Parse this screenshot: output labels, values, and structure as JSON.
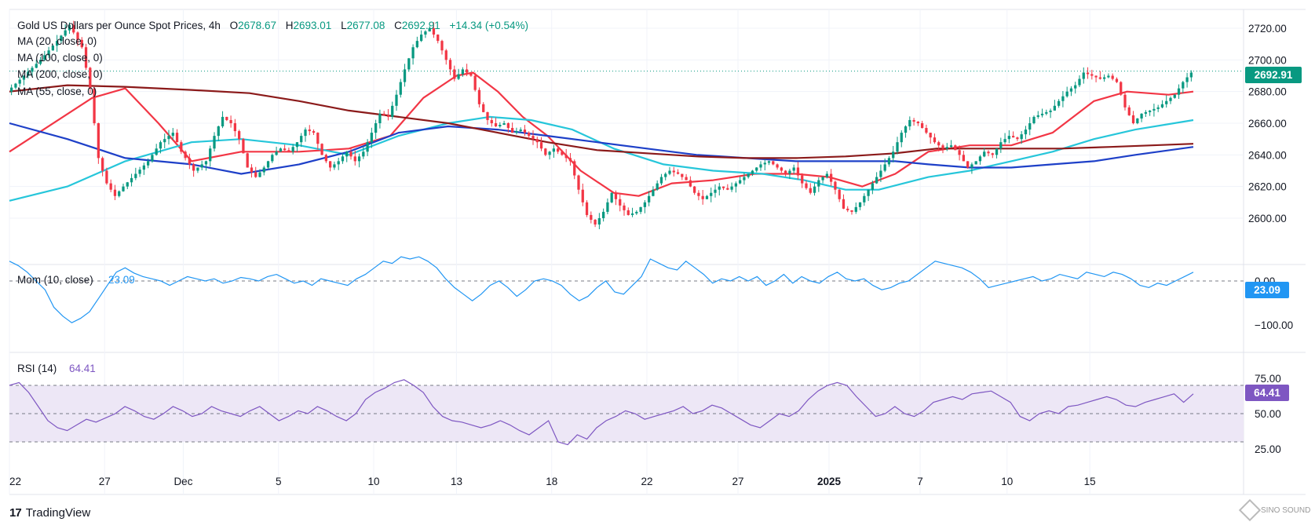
{
  "header": {
    "symbol": "Gold US Dollars per Ounce Spot Prices, 4h",
    "o_label": "O",
    "o": "2678.67",
    "h_label": "H",
    "h": "2693.01",
    "l_label": "L",
    "l": "2677.08",
    "c_label": "C",
    "c": "2692.91",
    "change": "+14.34 (+0.54%)"
  },
  "indicators": {
    "ma20": "MA (20, close, 0)",
    "ma100": "MA (100, close, 0)",
    "ma200": "MA (200, close, 0)",
    "ma55": "MA (55, close, 0)",
    "mom_label": "Mom (10, close)",
    "mom_value": "23.09",
    "rsi_label": "RSI (14)",
    "rsi_value": "64.41"
  },
  "badges": {
    "price": "2692.91",
    "mom": "23.09",
    "rsi": "64.41"
  },
  "branding": {
    "logo": "TradingView",
    "watermark": "SINO SOUND"
  },
  "colors": {
    "up": "#089981",
    "down": "#f23645",
    "ma20": "#f23645",
    "ma55": "#26c6da",
    "ma100": "#1e40c8",
    "ma200": "#8b1a1a",
    "mom": "#2196f3",
    "rsi": "#7e57c2",
    "rsi_band": "#ede7f6"
  },
  "chart_data": [
    {
      "type": "candlestick",
      "title": "Gold US Dollars per Ounce Spot Prices, 4h",
      "timeframe": "4h",
      "ylim": [
        2585,
        2730
      ],
      "y_ticks": [
        "2720.00",
        "2700.00",
        "2680.00",
        "2660.00",
        "2640.00",
        "2620.00",
        "2600.00"
      ],
      "x_ticks": [
        "22",
        "27",
        "Dec",
        "5",
        "10",
        "13",
        "18",
        "22",
        "27",
        "2025",
        "7",
        "10",
        "15"
      ],
      "last_price": 2692.91,
      "path_points": [
        [
          0,
          2680
        ],
        [
          4,
          2690
        ],
        [
          8,
          2700
        ],
        [
          12,
          2712
        ],
        [
          15,
          2722
        ],
        [
          18,
          2708
        ],
        [
          20,
          2682
        ],
        [
          22,
          2638
        ],
        [
          24,
          2622
        ],
        [
          26,
          2614
        ],
        [
          28,
          2620
        ],
        [
          31,
          2628
        ],
        [
          34,
          2636
        ],
        [
          37,
          2648
        ],
        [
          40,
          2654
        ],
        [
          42,
          2642
        ],
        [
          45,
          2630
        ],
        [
          48,
          2636
        ],
        [
          50,
          2652
        ],
        [
          52,
          2664
        ],
        [
          54,
          2660
        ],
        [
          56,
          2650
        ],
        [
          58,
          2632
        ],
        [
          60,
          2626
        ],
        [
          62,
          2632
        ],
        [
          64,
          2640
        ],
        [
          66,
          2644
        ],
        [
          68,
          2642
        ],
        [
          70,
          2648
        ],
        [
          72,
          2656
        ],
        [
          74,
          2654
        ],
        [
          76,
          2640
        ],
        [
          78,
          2632
        ],
        [
          80,
          2636
        ],
        [
          82,
          2642
        ],
        [
          84,
          2636
        ],
        [
          86,
          2642
        ],
        [
          88,
          2654
        ],
        [
          90,
          2666
        ],
        [
          92,
          2664
        ],
        [
          94,
          2678
        ],
        [
          96,
          2694
        ],
        [
          98,
          2708
        ],
        [
          100,
          2716
        ],
        [
          102,
          2720
        ],
        [
          104,
          2712
        ],
        [
          106,
          2700
        ],
        [
          108,
          2688
        ],
        [
          110,
          2694
        ],
        [
          112,
          2690
        ],
        [
          114,
          2672
        ],
        [
          116,
          2662
        ],
        [
          118,
          2658
        ],
        [
          120,
          2660
        ],
        [
          122,
          2654
        ],
        [
          124,
          2656
        ],
        [
          126,
          2652
        ],
        [
          128,
          2648
        ],
        [
          130,
          2640
        ],
        [
          132,
          2644
        ],
        [
          134,
          2640
        ],
        [
          136,
          2636
        ],
        [
          138,
          2618
        ],
        [
          140,
          2602
        ],
        [
          142,
          2596
        ],
        [
          144,
          2604
        ],
        [
          146,
          2616
        ],
        [
          148,
          2608
        ],
        [
          150,
          2602
        ],
        [
          152,
          2604
        ],
        [
          154,
          2610
        ],
        [
          156,
          2618
        ],
        [
          158,
          2626
        ],
        [
          160,
          2630
        ],
        [
          162,
          2628
        ],
        [
          164,
          2624
        ],
        [
          166,
          2616
        ],
        [
          168,
          2612
        ],
        [
          170,
          2616
        ],
        [
          172,
          2620
        ],
        [
          174,
          2618
        ],
        [
          176,
          2622
        ],
        [
          178,
          2626
        ],
        [
          180,
          2630
        ],
        [
          182,
          2634
        ],
        [
          184,
          2636
        ],
        [
          186,
          2632
        ],
        [
          188,
          2628
        ],
        [
          190,
          2632
        ],
        [
          192,
          2622
        ],
        [
          194,
          2616
        ],
        [
          196,
          2624
        ],
        [
          198,
          2628
        ],
        [
          200,
          2618
        ],
        [
          202,
          2606
        ],
        [
          204,
          2604
        ],
        [
          206,
          2610
        ],
        [
          208,
          2618
        ],
        [
          210,
          2626
        ],
        [
          212,
          2634
        ],
        [
          214,
          2642
        ],
        [
          216,
          2654
        ],
        [
          218,
          2662
        ],
        [
          220,
          2660
        ],
        [
          222,
          2654
        ],
        [
          224,
          2648
        ],
        [
          226,
          2644
        ],
        [
          228,
          2646
        ],
        [
          230,
          2640
        ],
        [
          232,
          2632
        ],
        [
          234,
          2636
        ],
        [
          236,
          2642
        ],
        [
          238,
          2640
        ],
        [
          240,
          2648
        ],
        [
          242,
          2652
        ],
        [
          244,
          2650
        ],
        [
          246,
          2656
        ],
        [
          248,
          2664
        ],
        [
          250,
          2666
        ],
        [
          252,
          2668
        ],
        [
          254,
          2674
        ],
        [
          256,
          2680
        ],
        [
          258,
          2684
        ],
        [
          260,
          2692
        ],
        [
          262,
          2690
        ],
        [
          264,
          2688
        ],
        [
          266,
          2690
        ],
        [
          268,
          2686
        ],
        [
          270,
          2670
        ],
        [
          272,
          2660
        ],
        [
          274,
          2666
        ],
        [
          276,
          2668
        ],
        [
          278,
          2670
        ],
        [
          280,
          2674
        ],
        [
          282,
          2678
        ],
        [
          284,
          2686
        ],
        [
          286,
          2692
        ]
      ],
      "series": [
        {
          "name": "MA (20, close, 0)",
          "points": [
            [
              0,
              2642
            ],
            [
              20,
              2676
            ],
            [
              28,
              2682
            ],
            [
              36,
              2660
            ],
            [
              44,
              2636
            ],
            [
              56,
              2642
            ],
            [
              70,
              2642
            ],
            [
              82,
              2644
            ],
            [
              92,
              2652
            ],
            [
              100,
              2676
            ],
            [
              108,
              2690
            ],
            [
              112,
              2692
            ],
            [
              118,
              2680
            ],
            [
              124,
              2664
            ],
            [
              130,
              2652
            ],
            [
              138,
              2630
            ],
            [
              146,
              2616
            ],
            [
              152,
              2614
            ],
            [
              160,
              2622
            ],
            [
              170,
              2624
            ],
            [
              180,
              2628
            ],
            [
              190,
              2628
            ],
            [
              198,
              2626
            ],
            [
              206,
              2620
            ],
            [
              214,
              2628
            ],
            [
              222,
              2642
            ],
            [
              232,
              2646
            ],
            [
              242,
              2646
            ],
            [
              252,
              2654
            ],
            [
              262,
              2674
            ],
            [
              270,
              2680
            ],
            [
              280,
              2678
            ],
            [
              286,
              2680
            ]
          ]
        },
        {
          "name": "MA (55, close, 0)",
          "points": [
            [
              0,
              2611
            ],
            [
              14,
              2620
            ],
            [
              28,
              2636
            ],
            [
              44,
              2648
            ],
            [
              56,
              2650
            ],
            [
              70,
              2646
            ],
            [
              82,
              2640
            ],
            [
              94,
              2652
            ],
            [
              106,
              2660
            ],
            [
              116,
              2664
            ],
            [
              126,
              2662
            ],
            [
              136,
              2656
            ],
            [
              146,
              2644
            ],
            [
              158,
              2634
            ],
            [
              170,
              2630
            ],
            [
              182,
              2628
            ],
            [
              192,
              2624
            ],
            [
              202,
              2618
            ],
            [
              210,
              2618
            ],
            [
              222,
              2626
            ],
            [
              232,
              2630
            ],
            [
              242,
              2636
            ],
            [
              252,
              2642
            ],
            [
              262,
              2650
            ],
            [
              272,
              2656
            ],
            [
              286,
              2662
            ]
          ]
        },
        {
          "name": "MA (100, close, 0)",
          "points": [
            [
              0,
              2660
            ],
            [
              14,
              2650
            ],
            [
              28,
              2638
            ],
            [
              44,
              2634
            ],
            [
              56,
              2628
            ],
            [
              70,
              2634
            ],
            [
              82,
              2642
            ],
            [
              94,
              2654
            ],
            [
              106,
              2658
            ],
            [
              118,
              2656
            ],
            [
              130,
              2652
            ],
            [
              142,
              2648
            ],
            [
              154,
              2644
            ],
            [
              166,
              2640
            ],
            [
              178,
              2638
            ],
            [
              190,
              2636
            ],
            [
              202,
              2636
            ],
            [
              214,
              2636
            ],
            [
              222,
              2634
            ],
            [
              232,
              2632
            ],
            [
              242,
              2632
            ],
            [
              252,
              2634
            ],
            [
              262,
              2636
            ],
            [
              272,
              2640
            ],
            [
              286,
              2645
            ]
          ]
        },
        {
          "name": "MA (200, close, 0)",
          "points": [
            [
              0,
              2680
            ],
            [
              14,
              2684
            ],
            [
              28,
              2683
            ],
            [
              44,
              2681
            ],
            [
              58,
              2679
            ],
            [
              70,
              2674
            ],
            [
              82,
              2668
            ],
            [
              94,
              2664
            ],
            [
              106,
              2660
            ],
            [
              118,
              2654
            ],
            [
              130,
              2648
            ],
            [
              142,
              2643
            ],
            [
              154,
              2641
            ],
            [
              166,
              2639
            ],
            [
              178,
              2638
            ],
            [
              190,
              2638
            ],
            [
              202,
              2639
            ],
            [
              214,
              2641
            ],
            [
              224,
              2644
            ],
            [
              240,
              2644
            ],
            [
              254,
              2644
            ],
            [
              266,
              2645
            ],
            [
              276,
              2646
            ],
            [
              286,
              2647
            ]
          ]
        }
      ]
    },
    {
      "type": "line",
      "title": "Mom (10, close)",
      "y_ticks": [
        "0.00",
        "−100.00"
      ],
      "zero_line": 0,
      "last_value": 23.09,
      "values": [
        45,
        35,
        20,
        0,
        -20,
        -60,
        -80,
        -95,
        -85,
        -70,
        -40,
        -10,
        20,
        30,
        18,
        10,
        5,
        0,
        -10,
        0,
        10,
        5,
        0,
        5,
        -5,
        0,
        8,
        5,
        0,
        10,
        15,
        5,
        -5,
        0,
        -10,
        5,
        0,
        -5,
        -10,
        5,
        15,
        30,
        45,
        40,
        55,
        50,
        55,
        45,
        30,
        5,
        -15,
        -30,
        -45,
        -30,
        -10,
        0,
        -15,
        -35,
        -20,
        0,
        5,
        0,
        -10,
        -30,
        -45,
        -35,
        -15,
        0,
        -25,
        -30,
        -10,
        10,
        50,
        40,
        30,
        25,
        45,
        30,
        15,
        -5,
        5,
        0,
        10,
        0,
        10,
        -10,
        0,
        15,
        -5,
        10,
        0,
        -5,
        10,
        20,
        5,
        0,
        5,
        -10,
        -20,
        -15,
        -5,
        0,
        15,
        30,
        45,
        40,
        35,
        30,
        20,
        5,
        -15,
        -10,
        -5,
        0,
        5,
        10,
        0,
        5,
        15,
        10,
        5,
        20,
        15,
        10,
        20,
        15,
        5,
        -10,
        -15,
        -5,
        -10,
        0,
        10,
        20
      ],
      "color": "#2196f3"
    },
    {
      "type": "line",
      "title": "RSI (14)",
      "y_ticks": [
        "75.00",
        "50.00",
        "25.00"
      ],
      "band": [
        30,
        70
      ],
      "mid_line": 50,
      "last_value": 64.41,
      "values": [
        70,
        72,
        65,
        55,
        45,
        40,
        38,
        42,
        46,
        44,
        47,
        50,
        55,
        52,
        48,
        46,
        50,
        55,
        52,
        48,
        50,
        55,
        52,
        50,
        48,
        52,
        55,
        50,
        45,
        48,
        52,
        50,
        55,
        52,
        48,
        45,
        50,
        60,
        65,
        68,
        72,
        74,
        70,
        65,
        55,
        48,
        45,
        44,
        42,
        40,
        42,
        45,
        42,
        38,
        35,
        40,
        45,
        30,
        28,
        35,
        32,
        40,
        45,
        48,
        52,
        50,
        46,
        48,
        50,
        52,
        55,
        50,
        52,
        56,
        54,
        50,
        46,
        42,
        40,
        45,
        50,
        48,
        52,
        60,
        66,
        70,
        72,
        70,
        62,
        55,
        48,
        50,
        55,
        50,
        48,
        52,
        58,
        60,
        62,
        60,
        64,
        65,
        66,
        62,
        58,
        48,
        45,
        50,
        52,
        50,
        55,
        56,
        58,
        60,
        62,
        60,
        56,
        55,
        58,
        60,
        62,
        64,
        58,
        64
      ]
    }
  ]
}
